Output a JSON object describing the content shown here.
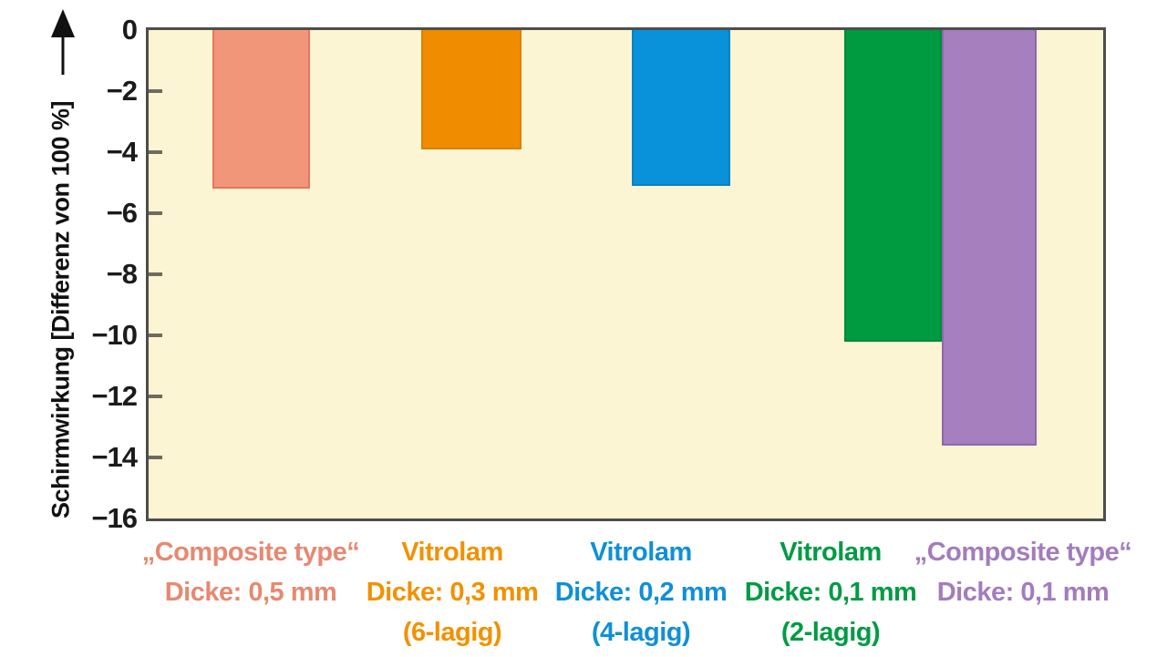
{
  "chart_data": {
    "type": "bar",
    "title": "",
    "xlabel": "",
    "ylabel": "Schirmwirkung [Differenz von 100 %]",
    "ylim": [
      -16,
      0
    ],
    "yticks": [
      0,
      -2,
      -4,
      -6,
      -8,
      -10,
      -12,
      -14,
      -16
    ],
    "ytick_labels": [
      "0",
      "−2",
      "−4",
      "−6",
      "−8",
      "−10",
      "−12",
      "−14",
      "−16"
    ],
    "grid": false,
    "legend": "none",
    "plot_background": "#FCF5D3",
    "axis_color": "#4D4D4B",
    "categories": [
      {
        "lines": [
          "„Composite type“",
          "Dicke: 0,5 mm"
        ],
        "text_color": "#E68970"
      },
      {
        "lines": [
          "Vitrolam",
          "Dicke: 0,3 mm",
          "(6-lagig)"
        ],
        "text_color": "#F29100"
      },
      {
        "lines": [
          "Vitrolam",
          "Dicke: 0,2 mm",
          "(4-lagig)"
        ],
        "text_color": "#1090D5"
      },
      {
        "lines": [
          "Vitrolam",
          "Dicke: 0,1 mm",
          "(2-lagig)"
        ],
        "text_color": "#009B44"
      },
      {
        "lines": [
          "„Composite type“",
          "Dicke: 0,1 mm"
        ],
        "text_color": "#A37CBD"
      }
    ],
    "values": [
      -5.2,
      -3.9,
      -5.1,
      -10.2,
      -13.6
    ],
    "bar_colors": [
      "#F29679",
      "#F08C00",
      "#0991D9",
      "#009A41",
      "#A57FBE"
    ],
    "bar_border_colors": [
      "#E9755B",
      "#E07F00",
      "#0882C5",
      "#008838",
      "#8F67AC"
    ]
  }
}
